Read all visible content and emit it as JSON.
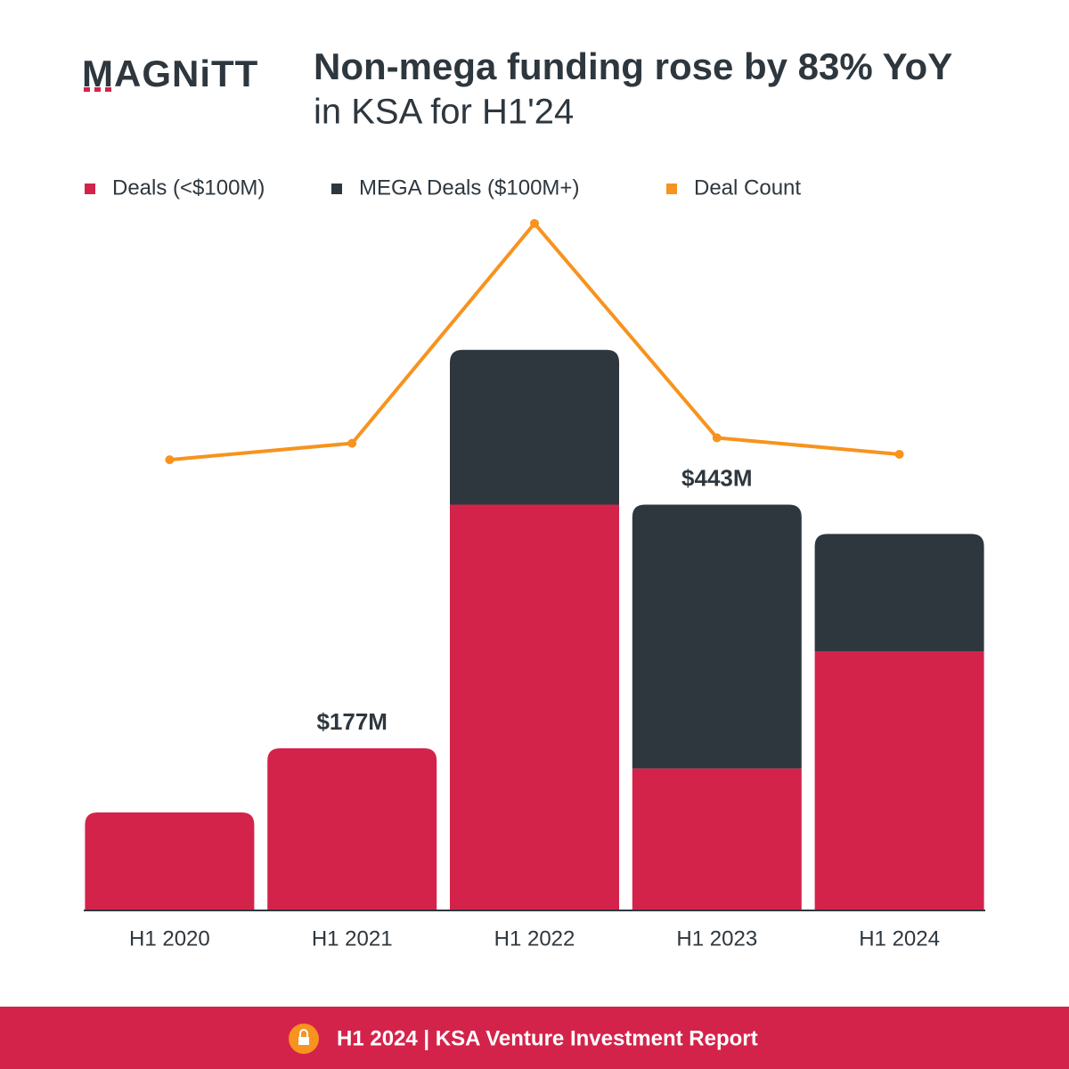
{
  "logo": "MAGNiTT",
  "footer": "H1 2024 | KSA Venture Investment Report",
  "chart_data": {
    "type": "bar",
    "stacked": true,
    "title": "Non-mega funding rose by 83% YoY",
    "subtitle": "in KSA for H1'24",
    "categories": [
      "H1 2020",
      "H1 2021",
      "H1 2022",
      "H1 2023",
      "H1 2024"
    ],
    "series": [
      {
        "name": "Deals (<$100M)",
        "color": "#d4234a",
        "values": [
          107,
          177,
          443,
          155,
          283
        ]
      },
      {
        "name": "MEGA Deals ($100M+)",
        "color": "#2e373e",
        "values": [
          0,
          0,
          169,
          288,
          128
        ]
      },
      {
        "name": "Deal Count",
        "color": "#f7931e",
        "type": "line",
        "axis": "y2",
        "values": [
          82,
          85,
          125,
          86,
          83
        ]
      }
    ],
    "annotations": [
      {
        "text": "$177M",
        "category": "H1 2021"
      },
      {
        "text": "$443M",
        "category": "H1 2023"
      }
    ],
    "ylim": [
      0,
      780
    ],
    "y2lim": [
      0,
      130
    ],
    "legend": "top"
  }
}
